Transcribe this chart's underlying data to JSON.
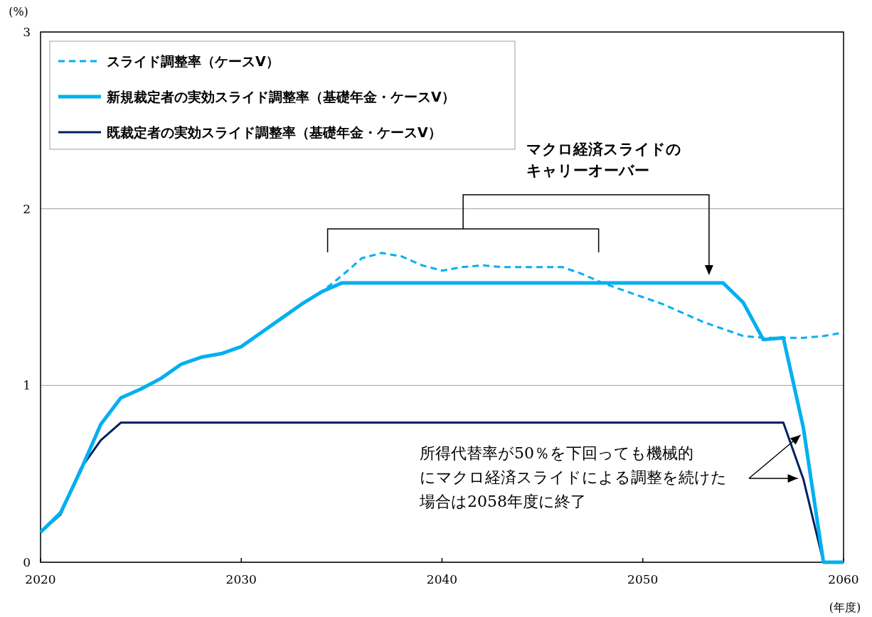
{
  "chart_data": {
    "type": "line",
    "xlabel": "(年度)",
    "ylabel": "(%)",
    "x": [
      2020,
      2021,
      2022,
      2023,
      2024,
      2025,
      2026,
      2027,
      2028,
      2029,
      2030,
      2031,
      2032,
      2033,
      2034,
      2035,
      2036,
      2037,
      2038,
      2039,
      2040,
      2041,
      2042,
      2043,
      2044,
      2045,
      2046,
      2047,
      2048,
      2049,
      2050,
      2051,
      2052,
      2053,
      2054,
      2055,
      2056,
      2057,
      2058,
      2059,
      2060
    ],
    "xlim": [
      2020,
      2060
    ],
    "xticks": [
      2020,
      2030,
      2040,
      2050,
      2060
    ],
    "ylim": [
      0,
      3
    ],
    "yticks": [
      0,
      1,
      2,
      3
    ],
    "grid": "y",
    "legend": "top left",
    "marker": "none",
    "series": [
      {
        "name": "スライド調整率（ケースⅤ）",
        "color": "#00b0f0",
        "line_style": "dashed",
        "values": [
          0.17,
          0.28,
          0.52,
          0.78,
          0.93,
          0.98,
          1.04,
          1.12,
          1.16,
          1.18,
          1.22,
          1.3,
          1.38,
          1.46,
          1.53,
          1.62,
          1.72,
          1.75,
          1.73,
          1.68,
          1.65,
          1.67,
          1.68,
          1.67,
          1.67,
          1.67,
          1.67,
          1.63,
          1.58,
          1.54,
          1.5,
          1.46,
          1.41,
          1.36,
          1.32,
          1.28,
          1.27,
          1.27,
          1.27,
          1.28,
          1.3
        ]
      },
      {
        "name": "新規裁定者の実効スライド調整率（基礎年金・ケースⅤ）",
        "color": "#00b0f0",
        "line_style": "solid",
        "values": [
          0.17,
          0.28,
          0.52,
          0.78,
          0.93,
          0.98,
          1.04,
          1.12,
          1.16,
          1.18,
          1.22,
          1.3,
          1.38,
          1.46,
          1.53,
          1.58,
          1.58,
          1.58,
          1.58,
          1.58,
          1.58,
          1.58,
          1.58,
          1.58,
          1.58,
          1.58,
          1.58,
          1.58,
          1.58,
          1.58,
          1.58,
          1.58,
          1.58,
          1.58,
          1.58,
          1.47,
          1.26,
          1.27,
          0.76,
          0,
          0
        ]
      },
      {
        "name": "既裁定者の実効スライド調整率（基礎年金・ケースⅤ）",
        "color": "#002060",
        "line_style": "solid",
        "values": [
          0.17,
          0.27,
          0.53,
          0.69,
          0.79,
          0.79,
          0.79,
          0.79,
          0.79,
          0.79,
          0.79,
          0.79,
          0.79,
          0.79,
          0.79,
          0.79,
          0.79,
          0.79,
          0.79,
          0.79,
          0.79,
          0.79,
          0.79,
          0.79,
          0.79,
          0.79,
          0.79,
          0.79,
          0.79,
          0.79,
          0.79,
          0.79,
          0.79,
          0.79,
          0.79,
          0.79,
          0.79,
          0.79,
          0.47,
          0,
          0
        ]
      }
    ],
    "annotations": [
      "マクロ経済スライドのキャリーオーバー",
      "所得代替率が50％を下回っても機械的にマクロ経済スライドによる調整を続けた場合は2058年度に終了"
    ]
  }
}
